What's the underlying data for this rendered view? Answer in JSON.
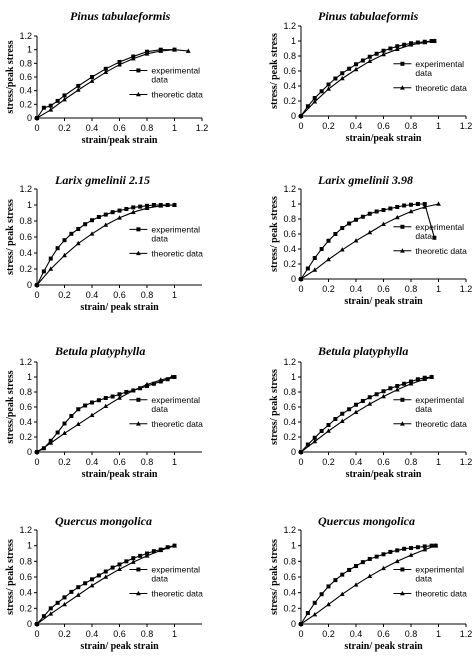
{
  "figure": {
    "legend_labels": {
      "experimental": "experimental data",
      "theoretic": "theoretic data"
    }
  },
  "chart_data": [
    {
      "type": "line",
      "title": "Pinus tabulaeformis",
      "xlabel": "strain/peak strain",
      "ylabel": "stress/peak stress",
      "xlim": [
        0,
        1.2
      ],
      "ylim": [
        0,
        1.2
      ],
      "xticks": [
        "0",
        "0.2",
        "0.4",
        "0.6",
        "0.8",
        "1",
        "1.2"
      ],
      "yticks": [
        "0",
        "0.2",
        "0.4",
        "0.6",
        "0.8",
        "1",
        "1.2"
      ],
      "legend": "right",
      "series": [
        {
          "name": "experimental data",
          "marker": "square",
          "x": [
            0,
            0.05,
            0.1,
            0.15,
            0.2,
            0.3,
            0.4,
            0.5,
            0.6,
            0.7,
            0.8,
            0.9,
            1.0
          ],
          "y": [
            0,
            0.15,
            0.18,
            0.25,
            0.33,
            0.47,
            0.6,
            0.72,
            0.82,
            0.9,
            0.97,
            1.0,
            1.0
          ]
        },
        {
          "name": "theoretic data",
          "marker": "triangle",
          "x": [
            0,
            0.1,
            0.2,
            0.3,
            0.4,
            0.5,
            0.6,
            0.7,
            0.8,
            0.9,
            1.0,
            1.1
          ],
          "y": [
            0,
            0.12,
            0.27,
            0.41,
            0.54,
            0.67,
            0.78,
            0.87,
            0.94,
            0.98,
            1.0,
            0.98
          ]
        }
      ]
    },
    {
      "type": "line",
      "title": "Pinus tabulaeformis",
      "xlabel": "strain/peak strain",
      "ylabel": "stress/ peak stress",
      "xlim": [
        0,
        1.2
      ],
      "ylim": [
        0,
        1.2
      ],
      "xticks": [
        "0",
        "0.2",
        "0.4",
        "0.6",
        "0.8",
        "1",
        "1.2"
      ],
      "yticks": [
        "0",
        "0.2",
        "0.4",
        "0.6",
        "0.8",
        "1",
        "1.2"
      ],
      "legend": "right",
      "series": [
        {
          "name": "experimental data",
          "marker": "square",
          "x": [
            0,
            0.05,
            0.1,
            0.15,
            0.2,
            0.25,
            0.3,
            0.35,
            0.4,
            0.45,
            0.5,
            0.55,
            0.6,
            0.65,
            0.7,
            0.75,
            0.8,
            0.85,
            0.9,
            0.95,
            0.97
          ],
          "y": [
            0,
            0.13,
            0.24,
            0.33,
            0.42,
            0.5,
            0.57,
            0.63,
            0.69,
            0.74,
            0.79,
            0.83,
            0.87,
            0.9,
            0.93,
            0.95,
            0.97,
            0.98,
            0.99,
            1.0,
            1.0
          ]
        },
        {
          "name": "theoretic data",
          "marker": "triangle",
          "x": [
            0,
            0.1,
            0.2,
            0.3,
            0.4,
            0.5,
            0.6,
            0.7,
            0.8,
            0.9,
            0.97
          ],
          "y": [
            0,
            0.19,
            0.36,
            0.5,
            0.62,
            0.73,
            0.82,
            0.89,
            0.95,
            0.98,
            1.0
          ]
        }
      ]
    },
    {
      "type": "line",
      "title": "Larix gmelinii 2.15",
      "xlabel": "strain/ peak strain",
      "ylabel": "stress/ peak stress",
      "xlim": [
        0,
        1.2
      ],
      "ylim": [
        0,
        1.2
      ],
      "xticks": [
        "0",
        "0.2",
        "0.4",
        "0.6",
        "0.8",
        "1"
      ],
      "yticks": [
        "0",
        "0.2",
        "0.4",
        "0.6",
        "0.8",
        "1",
        "1.2"
      ],
      "legend": "right",
      "series": [
        {
          "name": "experimental data",
          "marker": "square",
          "x": [
            0,
            0.05,
            0.1,
            0.15,
            0.2,
            0.25,
            0.3,
            0.35,
            0.4,
            0.45,
            0.5,
            0.55,
            0.6,
            0.65,
            0.7,
            0.75,
            0.8,
            0.85,
            0.9,
            0.95,
            1.0
          ],
          "y": [
            0,
            0.17,
            0.33,
            0.46,
            0.56,
            0.64,
            0.7,
            0.76,
            0.81,
            0.85,
            0.88,
            0.91,
            0.93,
            0.95,
            0.97,
            0.98,
            0.99,
            1.0,
            1.0,
            1.0,
            1.0
          ]
        },
        {
          "name": "theoretic data",
          "marker": "triangle",
          "x": [
            0,
            0.1,
            0.2,
            0.3,
            0.4,
            0.5,
            0.6,
            0.7,
            0.8,
            0.9,
            1.0
          ],
          "y": [
            0,
            0.2,
            0.37,
            0.52,
            0.64,
            0.75,
            0.84,
            0.91,
            0.96,
            0.99,
            1.0
          ]
        }
      ]
    },
    {
      "type": "line",
      "title": "Larix gmelinii 3.98",
      "xlabel": "strain/ peak strain",
      "ylabel": "stress/ peak stress",
      "xlim": [
        0,
        1.2
      ],
      "ylim": [
        0,
        1.2
      ],
      "xticks": [
        "0",
        "0.2",
        "0.4",
        "0.6",
        "0.8",
        "1",
        "1.2"
      ],
      "yticks": [
        "0",
        "0.2",
        "0.4",
        "0.6",
        "0.8",
        "1",
        "1.2"
      ],
      "legend": "right",
      "series": [
        {
          "name": "experimental data",
          "marker": "square",
          "x": [
            0,
            0.05,
            0.1,
            0.15,
            0.2,
            0.25,
            0.3,
            0.35,
            0.4,
            0.45,
            0.5,
            0.55,
            0.6,
            0.65,
            0.7,
            0.75,
            0.8,
            0.85,
            0.9,
            0.97
          ],
          "y": [
            0,
            0.14,
            0.28,
            0.4,
            0.51,
            0.6,
            0.68,
            0.74,
            0.79,
            0.83,
            0.87,
            0.9,
            0.92,
            0.94,
            0.96,
            0.98,
            0.99,
            1.0,
            1.0,
            0.55
          ]
        },
        {
          "name": "theoretic data",
          "marker": "triangle",
          "x": [
            0,
            0.1,
            0.2,
            0.3,
            0.4,
            0.5,
            0.6,
            0.7,
            0.8,
            0.9,
            1.0
          ],
          "y": [
            0,
            0.12,
            0.26,
            0.39,
            0.51,
            0.62,
            0.73,
            0.82,
            0.9,
            0.96,
            1.0
          ]
        }
      ]
    },
    {
      "type": "line",
      "title": "Betula platyphylla",
      "xlabel": "strain/peak strain",
      "ylabel": "stress/peak stress",
      "xlim": [
        0,
        1.2
      ],
      "ylim": [
        0,
        1.2
      ],
      "xticks": [
        "0",
        "0.2",
        "0.4",
        "0.6",
        "0.8",
        "1"
      ],
      "yticks": [
        "0",
        "0.2",
        "0.4",
        "0.6",
        "0.8",
        "1",
        "1.2"
      ],
      "legend": "right",
      "series": [
        {
          "name": "experimental data",
          "marker": "square",
          "x": [
            0,
            0.05,
            0.1,
            0.15,
            0.2,
            0.25,
            0.3,
            0.35,
            0.4,
            0.45,
            0.5,
            0.55,
            0.6,
            0.65,
            0.7,
            0.75,
            0.8,
            0.85,
            0.9,
            0.95,
            1.0
          ],
          "y": [
            0,
            0.05,
            0.15,
            0.26,
            0.38,
            0.48,
            0.57,
            0.62,
            0.66,
            0.69,
            0.72,
            0.74,
            0.77,
            0.8,
            0.82,
            0.85,
            0.88,
            0.91,
            0.94,
            0.97,
            1.0
          ]
        },
        {
          "name": "theoretic data",
          "marker": "triangle",
          "x": [
            0,
            0.1,
            0.2,
            0.3,
            0.4,
            0.5,
            0.6,
            0.7,
            0.8,
            0.9,
            0.98
          ],
          "y": [
            0,
            0.12,
            0.25,
            0.37,
            0.49,
            0.61,
            0.72,
            0.82,
            0.9,
            0.96,
            1.0
          ]
        }
      ]
    },
    {
      "type": "line",
      "title": "Betula platyphylla",
      "xlabel": "strain/peak strain",
      "ylabel": "stress/ peak stress",
      "xlim": [
        0,
        1.2
      ],
      "ylim": [
        0,
        1.2
      ],
      "xticks": [
        "0",
        "0.2",
        "0.4",
        "0.6",
        "0.8",
        "1",
        "1.2"
      ],
      "yticks": [
        "0",
        "0.2",
        "0.4",
        "0.6",
        "0.8",
        "1",
        "1.2"
      ],
      "legend": "right",
      "series": [
        {
          "name": "experimental data",
          "marker": "square",
          "x": [
            0,
            0.05,
            0.1,
            0.15,
            0.2,
            0.25,
            0.3,
            0.35,
            0.4,
            0.45,
            0.5,
            0.55,
            0.6,
            0.65,
            0.7,
            0.75,
            0.8,
            0.85,
            0.9,
            0.95
          ],
          "y": [
            0,
            0.1,
            0.19,
            0.28,
            0.36,
            0.44,
            0.51,
            0.57,
            0.63,
            0.68,
            0.73,
            0.77,
            0.81,
            0.85,
            0.88,
            0.91,
            0.94,
            0.97,
            0.99,
            1.0
          ]
        },
        {
          "name": "theoretic data",
          "marker": "triangle",
          "x": [
            0,
            0.1,
            0.2,
            0.3,
            0.4,
            0.5,
            0.6,
            0.7,
            0.8,
            0.9,
            0.95
          ],
          "y": [
            0,
            0.14,
            0.28,
            0.41,
            0.53,
            0.64,
            0.74,
            0.83,
            0.91,
            0.97,
            1.0
          ]
        }
      ]
    },
    {
      "type": "line",
      "title": "Quercus mongolica",
      "xlabel": "strain/ peak strain",
      "ylabel": "stress/ peak stress",
      "xlim": [
        0,
        1.2
      ],
      "ylim": [
        0,
        1.2
      ],
      "xticks": [
        "0",
        "0.2",
        "0.4",
        "0.6",
        "0.8",
        "1"
      ],
      "yticks": [
        "0",
        "0.2",
        "0.4",
        "0.6",
        "0.8",
        "1",
        "1.2"
      ],
      "legend": "right",
      "series": [
        {
          "name": "experimental data",
          "marker": "square",
          "x": [
            0,
            0.05,
            0.1,
            0.15,
            0.2,
            0.25,
            0.3,
            0.35,
            0.4,
            0.45,
            0.5,
            0.55,
            0.6,
            0.65,
            0.7,
            0.75,
            0.8,
            0.85,
            0.9,
            0.95,
            1.0
          ],
          "y": [
            0,
            0.1,
            0.2,
            0.27,
            0.34,
            0.41,
            0.47,
            0.52,
            0.57,
            0.62,
            0.67,
            0.72,
            0.76,
            0.8,
            0.84,
            0.87,
            0.9,
            0.93,
            0.95,
            0.98,
            1.0
          ]
        },
        {
          "name": "theoretic data",
          "marker": "triangle",
          "x": [
            0,
            0.1,
            0.2,
            0.3,
            0.4,
            0.5,
            0.6,
            0.7,
            0.8,
            0.9,
            1.0
          ],
          "y": [
            0,
            0.13,
            0.25,
            0.37,
            0.49,
            0.6,
            0.7,
            0.79,
            0.87,
            0.94,
            1.0
          ]
        }
      ]
    },
    {
      "type": "line",
      "title": "Quercus mongolica",
      "xlabel": "strain/ peak strain",
      "ylabel": "stress/ peak stress",
      "xlim": [
        0,
        1.2
      ],
      "ylim": [
        0,
        1.2
      ],
      "xticks": [
        "0",
        "0.2",
        "0.4",
        "0.6",
        "0.8",
        "1",
        "1.2"
      ],
      "yticks": [
        "0",
        "0.2",
        "0.4",
        "0.6",
        "0.8",
        "1",
        "1.2"
      ],
      "legend": "right",
      "series": [
        {
          "name": "experimental data",
          "marker": "square",
          "x": [
            0,
            0.05,
            0.1,
            0.15,
            0.2,
            0.25,
            0.3,
            0.35,
            0.4,
            0.45,
            0.5,
            0.55,
            0.6,
            0.65,
            0.7,
            0.75,
            0.8,
            0.85,
            0.9,
            0.95,
            0.98
          ],
          "y": [
            0,
            0.14,
            0.27,
            0.38,
            0.48,
            0.56,
            0.63,
            0.69,
            0.74,
            0.79,
            0.83,
            0.86,
            0.89,
            0.92,
            0.94,
            0.96,
            0.97,
            0.98,
            0.99,
            1.0,
            1.0
          ]
        },
        {
          "name": "theoretic data",
          "marker": "triangle",
          "x": [
            0,
            0.1,
            0.2,
            0.3,
            0.4,
            0.5,
            0.6,
            0.7,
            0.8,
            0.9,
            0.98
          ],
          "y": [
            0,
            0.12,
            0.25,
            0.38,
            0.5,
            0.61,
            0.71,
            0.8,
            0.88,
            0.95,
            1.0
          ]
        }
      ]
    }
  ]
}
